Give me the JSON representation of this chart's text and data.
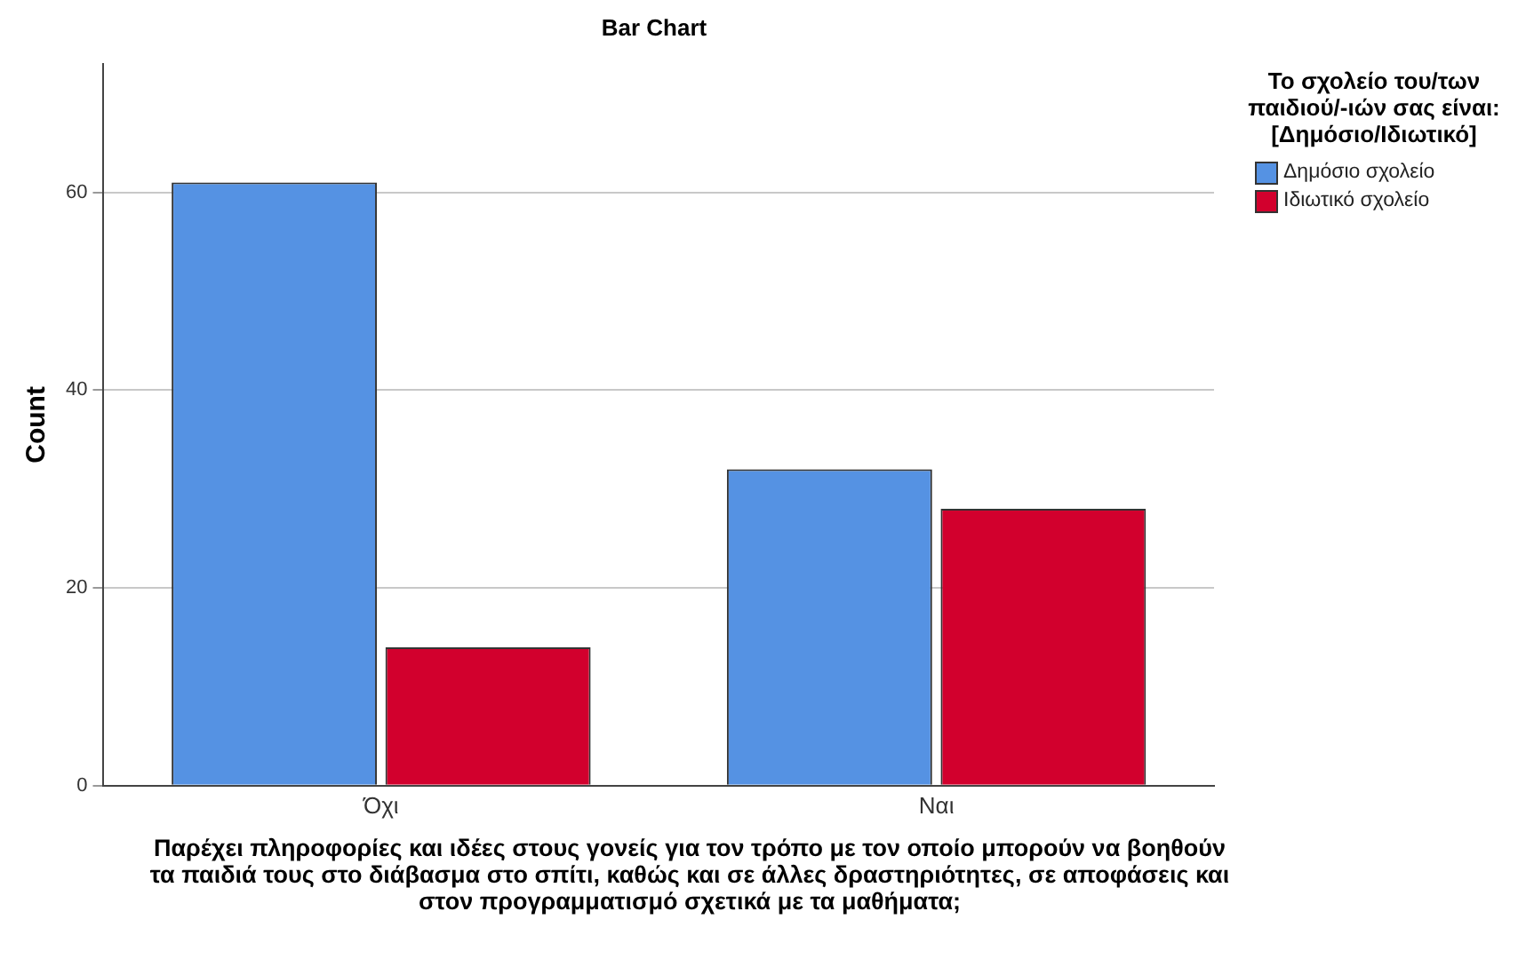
{
  "chart_data": {
    "type": "bar",
    "title": "Bar Chart",
    "xlabel": "Παρέχει πληροφορίες και ιδέες στους γονείς για τον τρόπο με τον οποίο μπορούν να βοηθούν τα παιδιά τους στο διάβασμα στο σπίτι, καθώς και σε άλλες δραστηριότητες, σε αποφάσεις και στον προγραμματισμό σχετικά με τα μαθήματα;",
    "ylabel": "Count",
    "legend_title": "Το σχολείο του/των παιδιού/-ιών σας είναι: [Δημόσιο/Ιδιωτικό]",
    "categories": [
      "Όχι",
      "Ναι"
    ],
    "series": [
      {
        "name": "Δημόσιο σχολείο",
        "color": "#5592e3",
        "values": [
          61,
          32
        ]
      },
      {
        "name": "Ιδιωτικό σχολείο",
        "color": "#d2002d",
        "values": [
          14,
          28
        ]
      }
    ],
    "ylim": [
      0,
      73
    ],
    "yticks": [
      0,
      20,
      40,
      60
    ],
    "grid": "y",
    "legend": "top right"
  }
}
